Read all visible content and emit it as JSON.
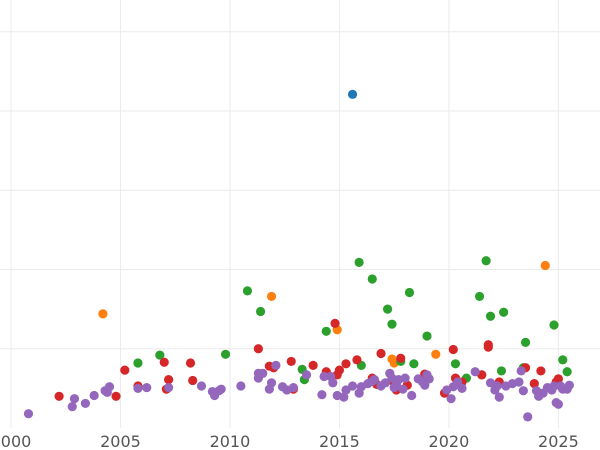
{
  "chart_data": {
    "type": "scatter",
    "title": "",
    "xlabel": "",
    "ylabel": "",
    "xlim": [
      1999.5,
      2026.9
    ],
    "ylim": [
      0,
      540
    ],
    "x_ticks": [
      2000,
      2005,
      2010,
      2015,
      2020,
      2025
    ],
    "x_tick_labels": [
      "2000",
      "2005",
      "2010",
      "2015",
      "2020",
      "2025"
    ],
    "y_gridlines": [
      100,
      200,
      300,
      400,
      500
    ],
    "grid": true,
    "legend": "none",
    "series": [
      {
        "color": "#1f77b4",
        "points": [
          [
            2015.6,
            421
          ]
        ]
      },
      {
        "color": "#ff7f0e",
        "points": [
          [
            2004.2,
            144
          ],
          [
            2011.9,
            166
          ],
          [
            2014.9,
            124
          ],
          [
            2017.4,
            87
          ],
          [
            2017.5,
            82
          ],
          [
            2019.4,
            93
          ],
          [
            2024.4,
            205
          ]
        ]
      },
      {
        "color": "#2ca02c",
        "points": [
          [
            2005.8,
            82
          ],
          [
            2006.8,
            92
          ],
          [
            2009.8,
            93
          ],
          [
            2010.8,
            173
          ],
          [
            2011.4,
            147
          ],
          [
            2013.3,
            74
          ],
          [
            2013.4,
            61
          ],
          [
            2014.4,
            122
          ],
          [
            2015.9,
            209
          ],
          [
            2016.0,
            79
          ],
          [
            2016.5,
            188
          ],
          [
            2017.2,
            150
          ],
          [
            2017.4,
            131
          ],
          [
            2017.8,
            84
          ],
          [
            2018.2,
            171
          ],
          [
            2018.4,
            81
          ],
          [
            2019.0,
            116
          ],
          [
            2020.3,
            81
          ],
          [
            2020.8,
            63
          ],
          [
            2021.4,
            166
          ],
          [
            2021.5,
            67
          ],
          [
            2021.7,
            211
          ],
          [
            2021.9,
            141
          ],
          [
            2022.4,
            72
          ],
          [
            2022.5,
            146
          ],
          [
            2023.4,
            76
          ],
          [
            2023.5,
            108
          ],
          [
            2024.8,
            130
          ],
          [
            2025.2,
            86
          ],
          [
            2025.4,
            71
          ]
        ]
      },
      {
        "color": "#d62728",
        "points": [
          [
            2002.2,
            40
          ],
          [
            2004.8,
            40
          ],
          [
            2005.2,
            73
          ],
          [
            2005.8,
            53
          ],
          [
            2007.0,
            83
          ],
          [
            2007.1,
            49
          ],
          [
            2007.2,
            61
          ],
          [
            2008.2,
            82
          ],
          [
            2008.3,
            60
          ],
          [
            2011.3,
            100
          ],
          [
            2011.8,
            78
          ],
          [
            2012.0,
            76
          ],
          [
            2012.8,
            84
          ],
          [
            2012.9,
            49
          ],
          [
            2013.8,
            79
          ],
          [
            2014.4,
            71
          ],
          [
            2014.8,
            132
          ],
          [
            2014.9,
            67
          ],
          [
            2015.0,
            73
          ],
          [
            2015.3,
            81
          ],
          [
            2015.8,
            86
          ],
          [
            2016.5,
            63
          ],
          [
            2016.7,
            55
          ],
          [
            2016.9,
            94
          ],
          [
            2017.4,
            60
          ],
          [
            2017.6,
            48
          ],
          [
            2017.8,
            88
          ],
          [
            2018.1,
            54
          ],
          [
            2018.9,
            68
          ],
          [
            2019.8,
            44
          ],
          [
            2020.2,
            99
          ],
          [
            2020.3,
            63
          ],
          [
            2020.6,
            58
          ],
          [
            2021.5,
            67
          ],
          [
            2021.8,
            105
          ],
          [
            2021.8,
            102
          ],
          [
            2022.3,
            58
          ],
          [
            2023.5,
            76
          ],
          [
            2023.9,
            56
          ],
          [
            2024.2,
            72
          ],
          [
            2024.9,
            58
          ],
          [
            2025.0,
            62
          ]
        ]
      },
      {
        "color": "#9467bd",
        "points": [
          [
            2000.8,
            18
          ],
          [
            2002.8,
            27
          ],
          [
            2002.9,
            37
          ],
          [
            2003.4,
            31
          ],
          [
            2003.8,
            41
          ],
          [
            2004.3,
            47
          ],
          [
            2004.4,
            45
          ],
          [
            2004.5,
            52
          ],
          [
            2005.8,
            50
          ],
          [
            2006.2,
            51
          ],
          [
            2007.2,
            51
          ],
          [
            2008.7,
            53
          ],
          [
            2009.2,
            46
          ],
          [
            2009.3,
            41
          ],
          [
            2009.5,
            47
          ],
          [
            2009.6,
            49
          ],
          [
            2010.5,
            53
          ],
          [
            2011.3,
            63
          ],
          [
            2011.3,
            69
          ],
          [
            2011.5,
            69
          ],
          [
            2011.8,
            49
          ],
          [
            2011.9,
            57
          ],
          [
            2012.1,
            79
          ],
          [
            2012.4,
            52
          ],
          [
            2012.6,
            48
          ],
          [
            2012.9,
            51
          ],
          [
            2013.5,
            67
          ],
          [
            2014.2,
            42
          ],
          [
            2014.3,
            65
          ],
          [
            2014.6,
            65
          ],
          [
            2014.7,
            57
          ],
          [
            2014.9,
            41
          ],
          [
            2015.2,
            39
          ],
          [
            2015.3,
            48
          ],
          [
            2015.6,
            53
          ],
          [
            2015.9,
            44
          ],
          [
            2016.0,
            52
          ],
          [
            2016.3,
            56
          ],
          [
            2016.5,
            59
          ],
          [
            2016.6,
            61
          ],
          [
            2016.9,
            53
          ],
          [
            2017.1,
            57
          ],
          [
            2017.3,
            69
          ],
          [
            2017.4,
            63
          ],
          [
            2017.5,
            51
          ],
          [
            2017.6,
            55
          ],
          [
            2017.7,
            61
          ],
          [
            2017.9,
            49
          ],
          [
            2018.0,
            63
          ],
          [
            2018.3,
            41
          ],
          [
            2018.6,
            62
          ],
          [
            2018.8,
            58
          ],
          [
            2018.9,
            54
          ],
          [
            2019.0,
            67
          ],
          [
            2019.1,
            62
          ],
          [
            2019.9,
            48
          ],
          [
            2020.1,
            37
          ],
          [
            2020.2,
            52
          ],
          [
            2020.4,
            58
          ],
          [
            2020.6,
            50
          ],
          [
            2021.2,
            71
          ],
          [
            2021.9,
            57
          ],
          [
            2022.1,
            48
          ],
          [
            2022.2,
            53
          ],
          [
            2022.3,
            39
          ],
          [
            2022.6,
            53
          ],
          [
            2022.9,
            56
          ],
          [
            2023.2,
            58
          ],
          [
            2023.3,
            72
          ],
          [
            2023.4,
            47
          ],
          [
            2023.6,
            14
          ],
          [
            2024.0,
            47
          ],
          [
            2024.1,
            40
          ],
          [
            2024.3,
            44
          ],
          [
            2024.5,
            51
          ],
          [
            2024.7,
            48
          ],
          [
            2024.8,
            53
          ],
          [
            2024.9,
            32
          ],
          [
            2025.0,
            30
          ],
          [
            2025.1,
            53
          ],
          [
            2025.2,
            49
          ],
          [
            2025.4,
            49
          ],
          [
            2025.5,
            54
          ]
        ]
      }
    ]
  }
}
